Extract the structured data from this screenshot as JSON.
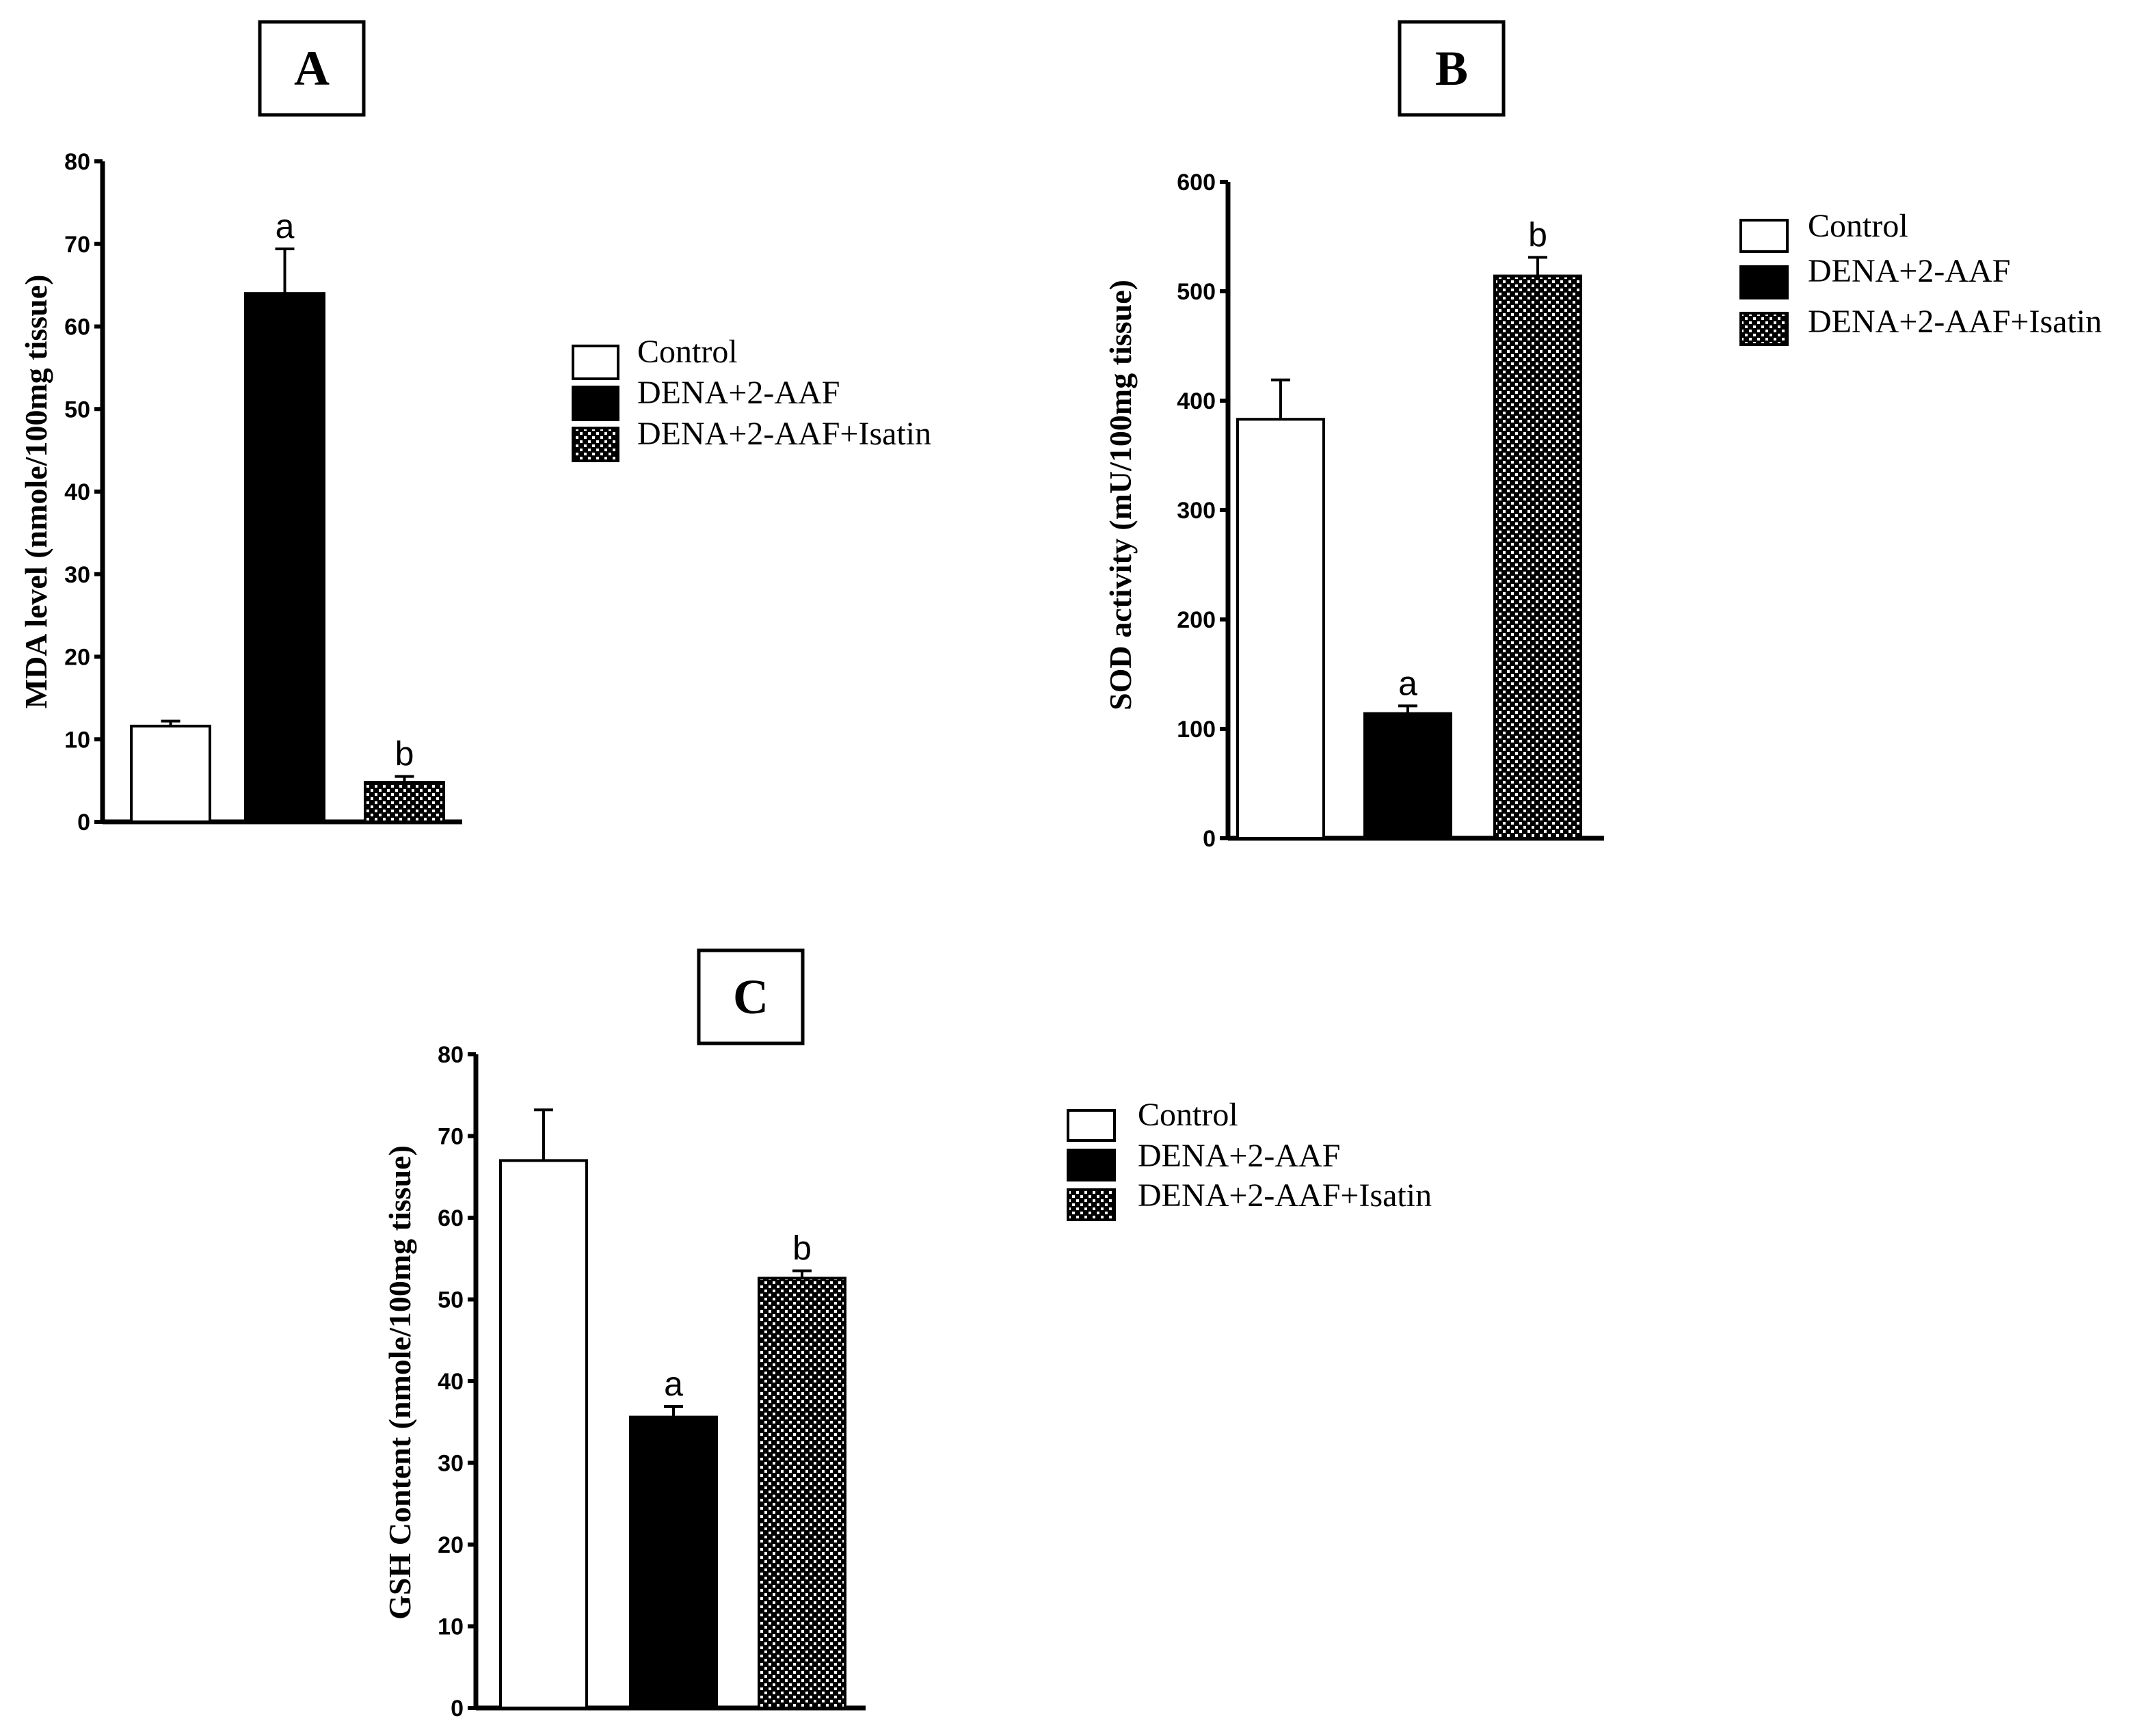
{
  "legend": {
    "labels": [
      "Control",
      "DENA+2-AAF",
      "DENA+2-AAF+Isatin"
    ]
  },
  "colors": {
    "control": "#ffffff",
    "dena": "#000000",
    "isatin_pattern_fg": "#000000",
    "isatin_pattern_bg": "#ffffff"
  },
  "chart_data": [
    {
      "type": "bar",
      "panel_label": "A",
      "ylabel": "MDA level  (nmole/100mg tissue)",
      "xlabel": "",
      "ylim": [
        0,
        80
      ],
      "yticks": [
        0,
        10,
        20,
        30,
        40,
        50,
        60,
        70,
        80
      ],
      "legend_position": "right",
      "categories": [
        "Control",
        "DENA+2-AAF",
        "DENA+2-AAF+Isatin"
      ],
      "values": [
        11.6,
        64.0,
        4.8
      ],
      "errors": [
        0.6,
        5.4,
        0.7
      ],
      "significance": [
        "",
        "a",
        "b"
      ]
    },
    {
      "type": "bar",
      "panel_label": "B",
      "ylabel": "SOD activity (mU/100mg tissue)",
      "xlabel": "",
      "ylim": [
        0,
        600
      ],
      "yticks": [
        0,
        100,
        200,
        300,
        400,
        500,
        600
      ],
      "legend_position": "top-right",
      "categories": [
        "Control",
        "DENA+2-AAF",
        "DENA+2-AAF+Isatin"
      ],
      "values": [
        383,
        114,
        514
      ],
      "errors": [
        36,
        7,
        17
      ],
      "significance": [
        "",
        "a",
        "b"
      ]
    },
    {
      "type": "bar",
      "panel_label": "C",
      "ylabel": "GSH Content (nmole/100mg tissue)",
      "xlabel": "",
      "ylim": [
        0,
        80
      ],
      "yticks": [
        0,
        10,
        20,
        30,
        40,
        50,
        60,
        70,
        80
      ],
      "legend_position": "right",
      "categories": [
        "Control",
        "DENA+2-AAF",
        "DENA+2-AAF+Isatin"
      ],
      "values": [
        67.0,
        35.6,
        52.6
      ],
      "errors": [
        6.2,
        1.3,
        0.9
      ],
      "significance": [
        "",
        "a",
        "b"
      ]
    }
  ]
}
